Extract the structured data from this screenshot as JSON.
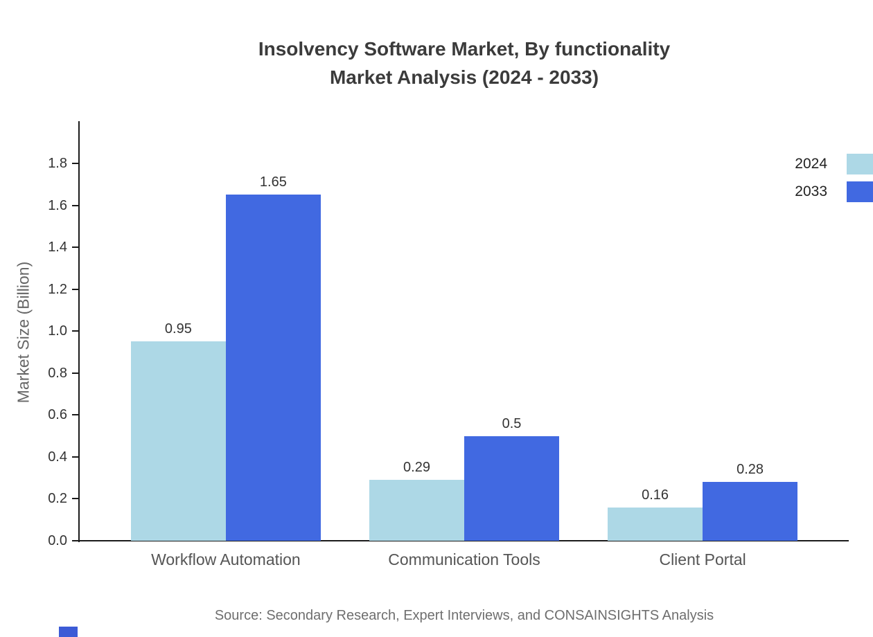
{
  "title": {
    "line1": "Insolvency Software Market, By functionality",
    "line2": "Market Analysis (2024 - 2033)"
  },
  "source": "Source: Secondary Research, Expert Interviews, and CONSAINSIGHTS Analysis",
  "chart_data": {
    "type": "bar",
    "categories": [
      "Workflow Automation",
      "Communication Tools",
      "Client Portal"
    ],
    "series": [
      {
        "name": "2024",
        "color": "#add8e6",
        "values": [
          0.95,
          0.29,
          0.16
        ]
      },
      {
        "name": "2033",
        "color": "#4169e1",
        "values": [
          1.65,
          0.5,
          0.28
        ]
      }
    ],
    "title": "Insolvency Software Market, By functionality Market Analysis (2024 - 2033)",
    "xlabel": "",
    "ylabel": "Market Size (Billion)",
    "ylim": [
      0,
      1.98
    ],
    "yticks": [
      0,
      0.2,
      0.4,
      0.6,
      0.8,
      1.0,
      1.2,
      1.4,
      1.6,
      1.8
    ],
    "grid": false,
    "legend_position": "top-right"
  }
}
